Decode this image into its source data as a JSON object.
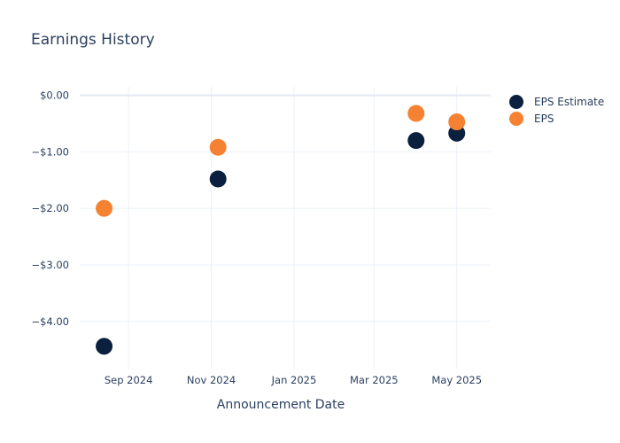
{
  "chart_data": {
    "type": "scatter",
    "title": "Earnings History",
    "xlabel": "Announcement Date",
    "ylabel": "",
    "x_ticks": [
      {
        "date": "2024-09-01",
        "label": "Sep 2024"
      },
      {
        "date": "2024-11-01",
        "label": "Nov 2024"
      },
      {
        "date": "2025-01-01",
        "label": "Jan 2025"
      },
      {
        "date": "2025-03-01",
        "label": "Mar 2025"
      },
      {
        "date": "2025-05-01",
        "label": "May 2025"
      }
    ],
    "y_ticks": [
      {
        "value": 0,
        "label": "$0.00"
      },
      {
        "value": -1,
        "label": "−$1.00"
      },
      {
        "value": -2,
        "label": "−$2.00"
      },
      {
        "value": -3,
        "label": "−$3.00"
      },
      {
        "value": -4,
        "label": "−$4.00"
      }
    ],
    "xlim": [
      "2024-07-27",
      "2025-05-26"
    ],
    "ylim": [
      -4.85,
      0.15
    ],
    "grid": true,
    "legend_position": "top-right",
    "x": [
      "2024-08-14",
      "2024-11-06",
      "2025-04-01",
      "2025-05-01"
    ],
    "series": [
      {
        "name": "EPS Estimate",
        "color": "#0b1f3f",
        "values": [
          -4.44,
          -1.48,
          -0.8,
          -0.67
        ]
      },
      {
        "name": "EPS",
        "color": "#f58233",
        "values": [
          -2.0,
          -0.92,
          -0.32,
          -0.47
        ]
      }
    ]
  }
}
